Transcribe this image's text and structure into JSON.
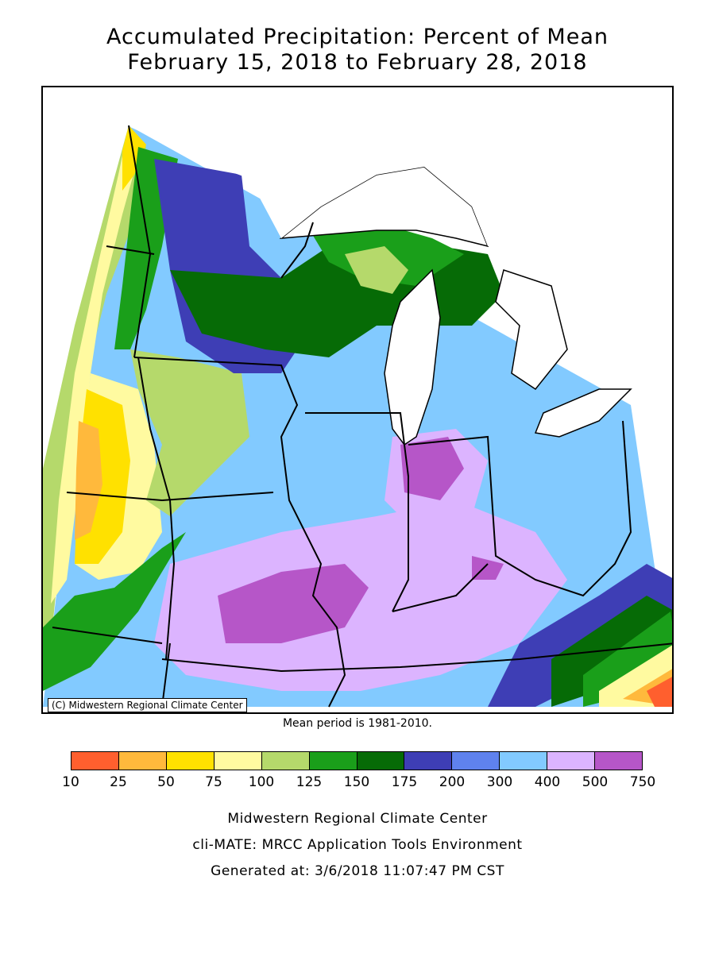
{
  "title": {
    "line1": "Accumulated Precipitation: Percent of Mean",
    "line2": "February 15, 2018 to February 28, 2018"
  },
  "map": {
    "copyright": "(C) Midwestern Regional Climate Center",
    "mean_period": "Mean period is 1981-2010."
  },
  "legend": {
    "ticks": [
      "10",
      "25",
      "50",
      "75",
      "100",
      "125",
      "150",
      "175",
      "200",
      "300",
      "400",
      "500",
      "750"
    ],
    "colors": [
      "#ff5f2e",
      "#ffb93c",
      "#ffe100",
      "#fffaa0",
      "#b5d96b",
      "#1a9f1a",
      "#066b06",
      "#3e3eb5",
      "#5f82ee",
      "#82caff",
      "#dcb4ff",
      "#b656c8"
    ]
  },
  "footer": {
    "line1": "Midwestern Regional Climate Center",
    "line2": "cli-MATE: MRCC Application Tools Environment",
    "line3": "Generated at: 3/6/2018 11:07:47 PM CST"
  }
}
